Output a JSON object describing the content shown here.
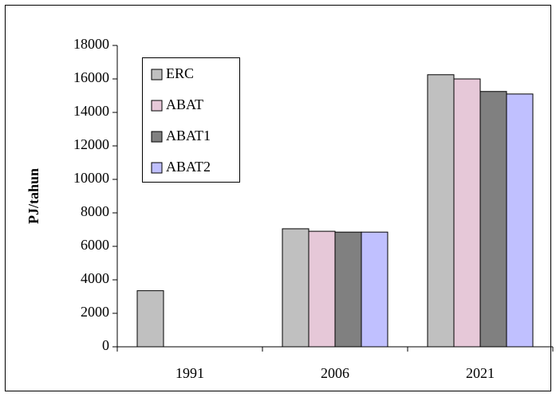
{
  "chart_data": {
    "type": "bar",
    "ylabel": "PJ/tahun",
    "categories": [
      "1991",
      "2006",
      "2021"
    ],
    "series": [
      {
        "name": "ERC",
        "color": "#c0c0c0",
        "values": [
          3350,
          7050,
          16250
        ]
      },
      {
        "name": "ABAT",
        "color": "#e6c8d8",
        "values": [
          null,
          6900,
          16000
        ]
      },
      {
        "name": "ABAT1",
        "color": "#808080",
        "values": [
          null,
          6850,
          15250
        ]
      },
      {
        "name": "ABAT2",
        "color": "#c0c0ff",
        "values": [
          null,
          6850,
          15100
        ]
      }
    ],
    "ylim": [
      0,
      18000
    ],
    "yticks": [
      0,
      2000,
      4000,
      6000,
      8000,
      10000,
      12000,
      14000,
      16000,
      18000
    ],
    "legend": "upper left",
    "grid": false
  }
}
